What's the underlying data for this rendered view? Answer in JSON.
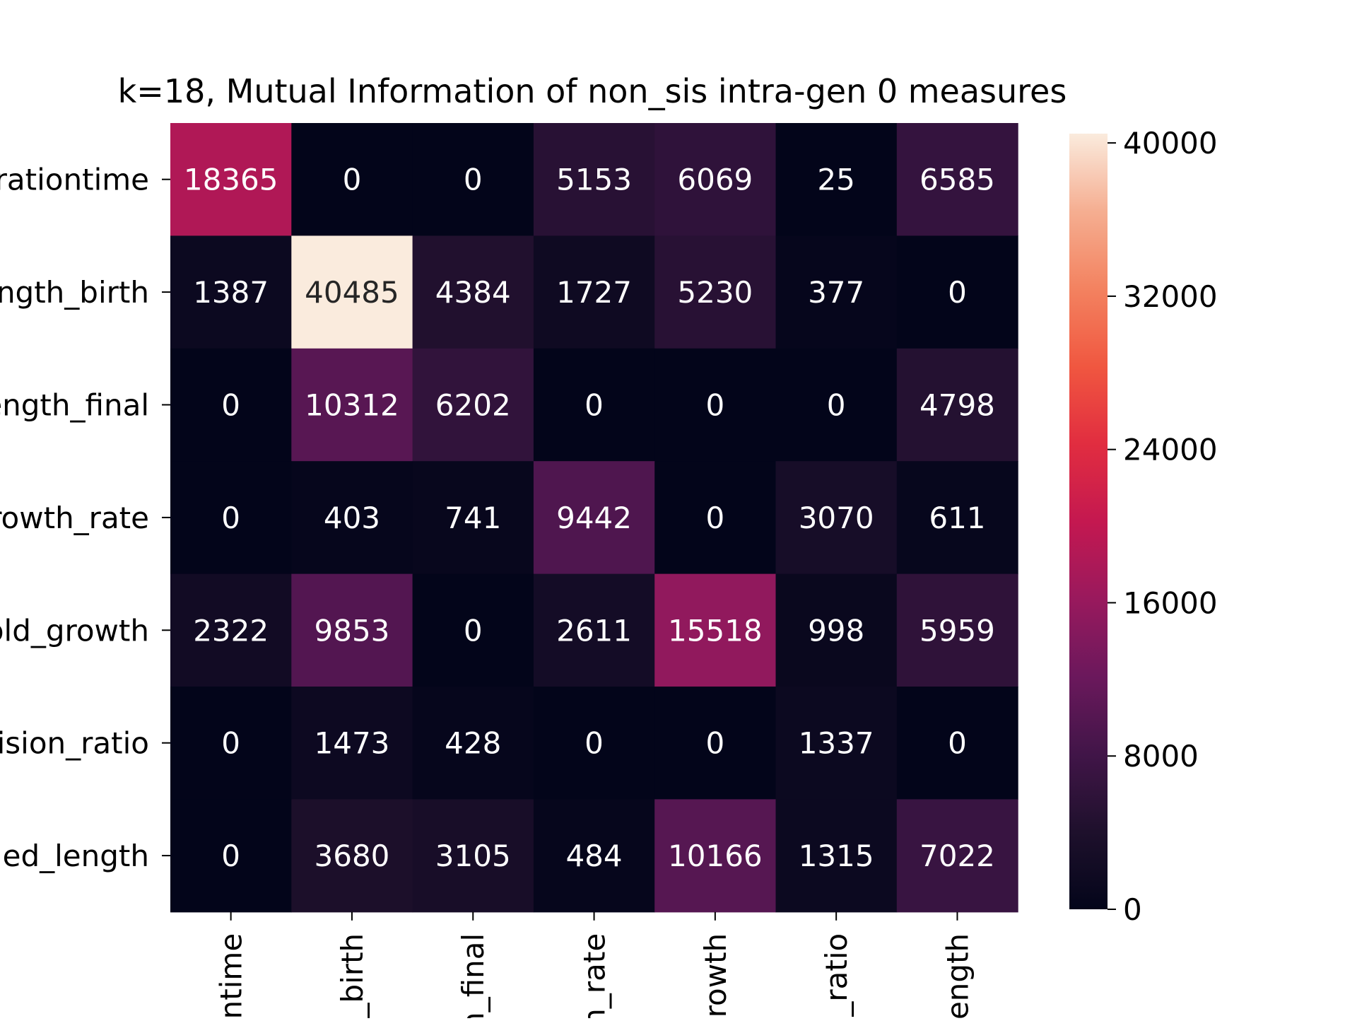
{
  "chart_data": {
    "type": "heatmap",
    "title": "k=18, Mutual Information of non_sis intra-gen 0 measures",
    "row_labels": [
      "rationtime",
      "ngth_birth",
      "ength_final",
      "rowth_rate",
      "old_growth",
      "ision_ratio",
      "led_length"
    ],
    "col_labels": [
      "ntime",
      "n_birth",
      "n_final",
      "h_rate",
      "growth",
      "n_ratio",
      "ength"
    ],
    "values": [
      [
        18365,
        0,
        0,
        5153,
        6069,
        25,
        6585
      ],
      [
        1387,
        40485,
        4384,
        1727,
        5230,
        377,
        0
      ],
      [
        0,
        10312,
        6202,
        0,
        0,
        0,
        4798
      ],
      [
        0,
        403,
        741,
        9442,
        0,
        3070,
        611
      ],
      [
        2322,
        9853,
        0,
        2611,
        15518,
        998,
        5959
      ],
      [
        0,
        1473,
        428,
        0,
        0,
        1337,
        0
      ],
      [
        0,
        3680,
        3105,
        484,
        10166,
        1315,
        7022
      ]
    ],
    "value_range": [
      0,
      40485
    ],
    "colorbar": {
      "ticks": [
        0,
        8000,
        16000,
        24000,
        32000,
        40000
      ],
      "tick_labels": [
        "0",
        "8000",
        "16000",
        "24000",
        "32000",
        "40000"
      ]
    },
    "colormap": "rocket",
    "grid": false,
    "legend": "colorbar-right"
  }
}
